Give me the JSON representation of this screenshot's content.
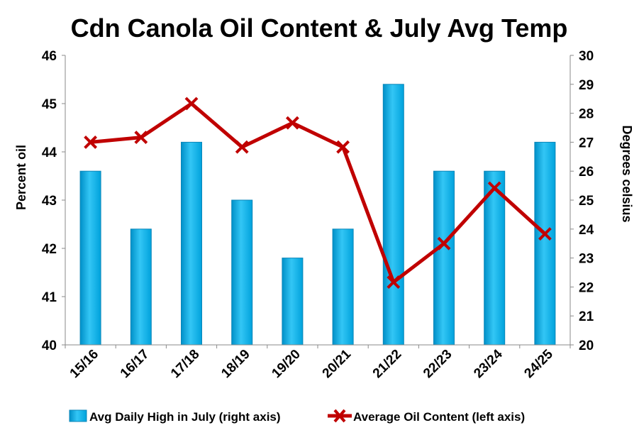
{
  "chart_data": {
    "type": "bar",
    "title": "Cdn Canola Oil Content & July Avg Temp",
    "categories": [
      "15/16",
      "16/17",
      "17/18",
      "18/19",
      "19/20",
      "20/21",
      "21/22",
      "22/23",
      "23/24",
      "24/25"
    ],
    "left_axis": {
      "label": "Percent oil",
      "range": [
        40,
        46
      ],
      "ticks": [
        "40",
        "41",
        "42",
        "43",
        "44",
        "45",
        "46"
      ]
    },
    "right_axis": {
      "label": "Degrees celsius",
      "range": [
        20,
        30
      ],
      "ticks": [
        "20",
        "21",
        "22",
        "23",
        "24",
        "25",
        "26",
        "27",
        "28",
        "29",
        "30"
      ]
    },
    "series": [
      {
        "name": "Avg Daily High in July (right axis)",
        "type": "bar",
        "axis": "right",
        "color": "#00B0F0",
        "values": [
          26,
          24,
          27,
          25,
          23,
          24,
          29,
          26,
          26,
          27
        ]
      },
      {
        "name": "Average Oil Content (left axis)",
        "type": "line",
        "axis": "left",
        "color": "#C00000",
        "values": [
          44.2,
          44.3,
          45.0,
          44.1,
          44.6,
          44.1,
          41.3,
          42.1,
          43.25,
          42.3
        ]
      }
    ],
    "grid": false,
    "legend": "bottom"
  }
}
